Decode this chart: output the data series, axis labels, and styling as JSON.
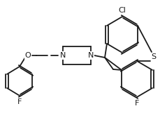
{
  "bg_color": "#ffffff",
  "line_color": "#1a1a1a",
  "bond_lw": 1.3,
  "label_fontsize": 7.5,
  "figsize": [
    2.39,
    1.63
  ],
  "dpi": 100,
  "xlim": [
    0,
    239
  ],
  "ylim": [
    0,
    163
  ]
}
